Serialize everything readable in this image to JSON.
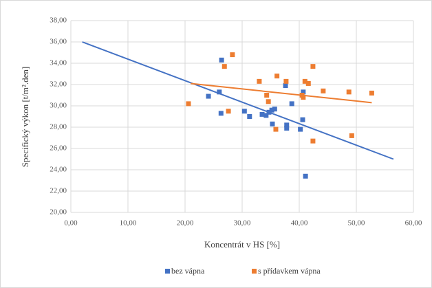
{
  "chart_data": {
    "type": "scatter",
    "xlabel": "Koncentrát v HS [%]",
    "ylabel": "Specifický výkon [t/m².den]",
    "xlim": [
      0,
      60
    ],
    "ylim": [
      20,
      38
    ],
    "xticks": [
      {
        "value": 0,
        "label": "0,00"
      },
      {
        "value": 10,
        "label": "10,00"
      },
      {
        "value": 20,
        "label": "20,00"
      },
      {
        "value": 30,
        "label": "30,00"
      },
      {
        "value": 40,
        "label": "40,00"
      },
      {
        "value": 50,
        "label": "50,00"
      },
      {
        "value": 60,
        "label": "60,00"
      }
    ],
    "yticks": [
      {
        "value": 20,
        "label": "20,00"
      },
      {
        "value": 22,
        "label": "22,00"
      },
      {
        "value": 24,
        "label": "24,00"
      },
      {
        "value": 26,
        "label": "26,00"
      },
      {
        "value": 28,
        "label": "28,00"
      },
      {
        "value": 30,
        "label": "30,00"
      },
      {
        "value": 32,
        "label": "32,00"
      },
      {
        "value": 34,
        "label": "34,00"
      },
      {
        "value": 36,
        "label": "36,00"
      },
      {
        "value": 38,
        "label": "38,00"
      }
    ],
    "grid": true,
    "legend": "bottom",
    "series": [
      {
        "name": "bez vápna",
        "color": "#4472c4",
        "x": [
          24.1,
          26.4,
          26.0,
          26.3,
          30.4,
          31.3,
          33.5,
          34.2,
          34.7,
          35.2,
          35.7,
          35.3,
          37.6,
          37.8,
          37.8,
          38.7,
          40.2,
          40.6,
          40.7,
          41.1
        ],
        "values": [
          30.9,
          34.3,
          31.3,
          29.3,
          29.5,
          29.0,
          29.2,
          29.1,
          29.4,
          29.6,
          29.7,
          28.3,
          31.9,
          28.2,
          27.9,
          30.2,
          27.8,
          28.7,
          31.3,
          23.4
        ],
        "trend": {
          "x": [
            2,
            56.5
          ],
          "values": [
            36,
            25
          ]
        }
      },
      {
        "name": "s přídavkem vápna",
        "color": "#ed7d31",
        "x": [
          20.6,
          26.9,
          27.6,
          28.3,
          33.0,
          34.3,
          34.6,
          35.9,
          36.1,
          37.7,
          40.5,
          40.7,
          41.0,
          41.6,
          42.4,
          42.4,
          44.2,
          48.7,
          49.2,
          52.7
        ],
        "values": [
          30.2,
          33.7,
          29.5,
          34.8,
          32.3,
          31.0,
          30.4,
          27.8,
          32.8,
          32.3,
          31.0,
          30.8,
          32.3,
          32.1,
          33.7,
          26.7,
          31.4,
          31.3,
          27.2,
          31.2
        ],
        "trend": {
          "x": [
            21,
            52.7
          ],
          "values": [
            32.1,
            30.3
          ]
        }
      }
    ]
  }
}
